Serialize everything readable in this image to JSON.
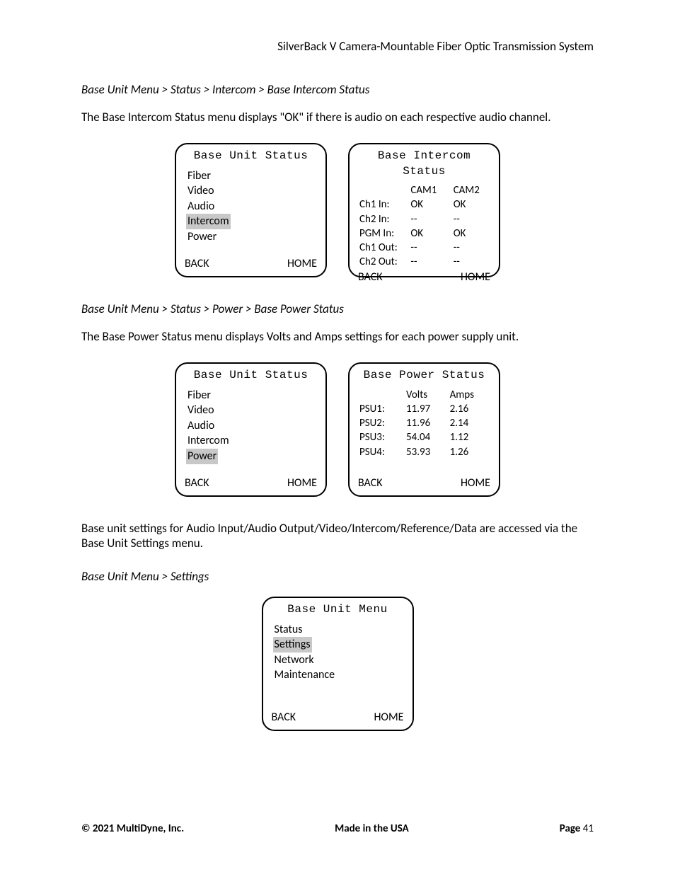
{
  "header": {
    "title": "SilverBack V Camera-Mountable Fiber Optic Transmission System"
  },
  "section1": {
    "breadcrumb": "Base Unit Menu > Status > Intercom > Base Intercom Status",
    "description": "The Base Intercom Status menu displays \"OK\" if there is audio on each respective audio channel.",
    "leftScreen": {
      "title": "Base Unit Status",
      "items": [
        "Fiber",
        "Video",
        "Audio",
        "Intercom",
        "Power"
      ],
      "highlightIndex": 3,
      "back": "BACK",
      "home": "HOME"
    },
    "rightScreen": {
      "title": "Base Intercom Status",
      "cols": [
        "",
        "CAM1",
        "CAM2"
      ],
      "rows": [
        [
          "Ch1 In:",
          "OK",
          "OK"
        ],
        [
          "Ch2 In:",
          "--",
          "--"
        ],
        [
          "PGM In:",
          "OK",
          "OK"
        ],
        [
          "Ch1 Out:",
          "--",
          "--"
        ],
        [
          "Ch2 Out:",
          "--",
          "--"
        ]
      ],
      "back": "BACK",
      "home": "HOME"
    }
  },
  "section2": {
    "breadcrumb": "Base Unit Menu > Status > Power > Base Power Status",
    "description": "The Base Power Status menu displays Volts and Amps settings for each power supply unit.",
    "leftScreen": {
      "title": "Base Unit Status",
      "items": [
        "Fiber",
        "Video",
        "Audio",
        "Intercom",
        "Power"
      ],
      "highlightIndex": 4,
      "back": "BACK",
      "home": "HOME"
    },
    "rightScreen": {
      "title": "Base Power Status",
      "cols": [
        "",
        "Volts",
        "Amps"
      ],
      "rows": [
        [
          "PSU1:",
          "11.97",
          "2.16"
        ],
        [
          "PSU2:",
          "11.96",
          "2.14"
        ],
        [
          "PSU3:",
          "54.04",
          "1.12"
        ],
        [
          "PSU4:",
          "53.93",
          "1.26"
        ]
      ],
      "back": "BACK",
      "home": "HOME"
    }
  },
  "section3": {
    "description": "Base unit settings for Audio Input/Audio Output/Video/Intercom/Reference/Data are accessed via the Base Unit Settings menu.",
    "breadcrumb": "Base Unit Menu > Settings",
    "screen": {
      "title": "Base Unit Menu",
      "items": [
        "Status",
        "Settings",
        "Network",
        "Maintenance"
      ],
      "highlightIndex": 1,
      "back": "BACK",
      "home": "HOME"
    }
  },
  "footer": {
    "left": "© 2021 MultiDyne, Inc.",
    "center": "Made in the USA",
    "pageLabel": "Page",
    "pageNum": "41"
  }
}
